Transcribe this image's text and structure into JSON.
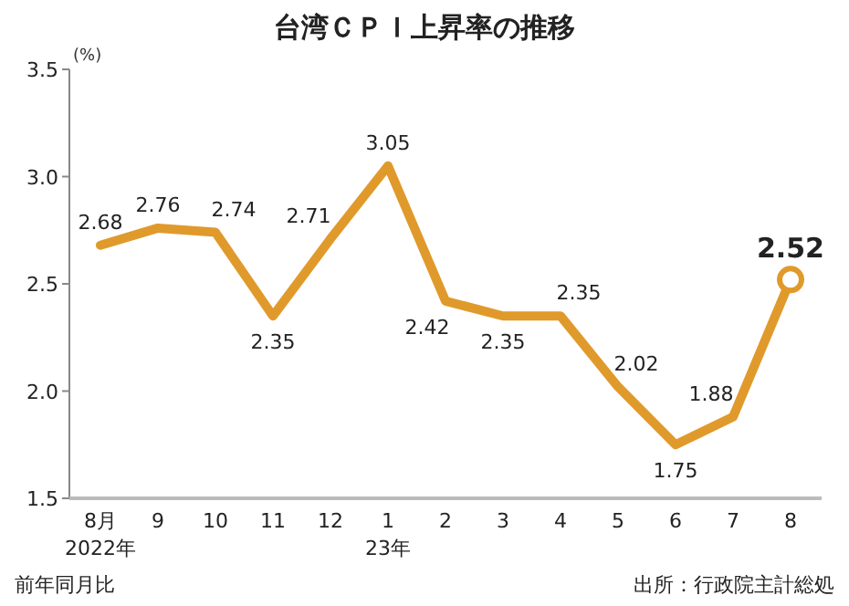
{
  "chart_data": {
    "type": "line",
    "title": "台湾ＣＰＩ上昇率の推移",
    "ylabel": "(%)",
    "categories": [
      "8月\n2022年",
      "9",
      "10",
      "11",
      "12",
      "1\n23年",
      "2",
      "3",
      "4",
      "5",
      "6",
      "7",
      "8"
    ],
    "ylim": [
      1.5,
      3.5
    ],
    "yticks": [
      {
        "value": 1.5,
        "label": "1.5"
      },
      {
        "value": 2.0,
        "label": "2.0"
      },
      {
        "value": 2.5,
        "label": "2.5"
      },
      {
        "value": 3.0,
        "label": "3.0"
      },
      {
        "value": 3.5,
        "label": "3.5"
      }
    ],
    "grid": false,
    "series": [
      {
        "color": "#e09a2b",
        "line_style": "solid",
        "marker": "none",
        "values": [
          2.68,
          2.76,
          2.74,
          2.35,
          2.71,
          3.05,
          2.42,
          2.35,
          2.35,
          2.02,
          1.75,
          1.88,
          2.52
        ],
        "value_labels": [
          "2.68",
          "2.76",
          "2.74",
          "2.35",
          "2.71",
          "3.05",
          "2.42",
          "2.35",
          "2.35",
          "2.02",
          "1.75",
          "1.88",
          null
        ]
      },
      {
        "type": "scatter",
        "color": "#e09a2b",
        "marker": "circle",
        "x": [
          "8"
        ],
        "values": [
          2.52
        ],
        "value_labels": [
          "2.52"
        ]
      }
    ],
    "annotations": [
      "前年同月比",
      "出所：行政院主計総処"
    ]
  }
}
